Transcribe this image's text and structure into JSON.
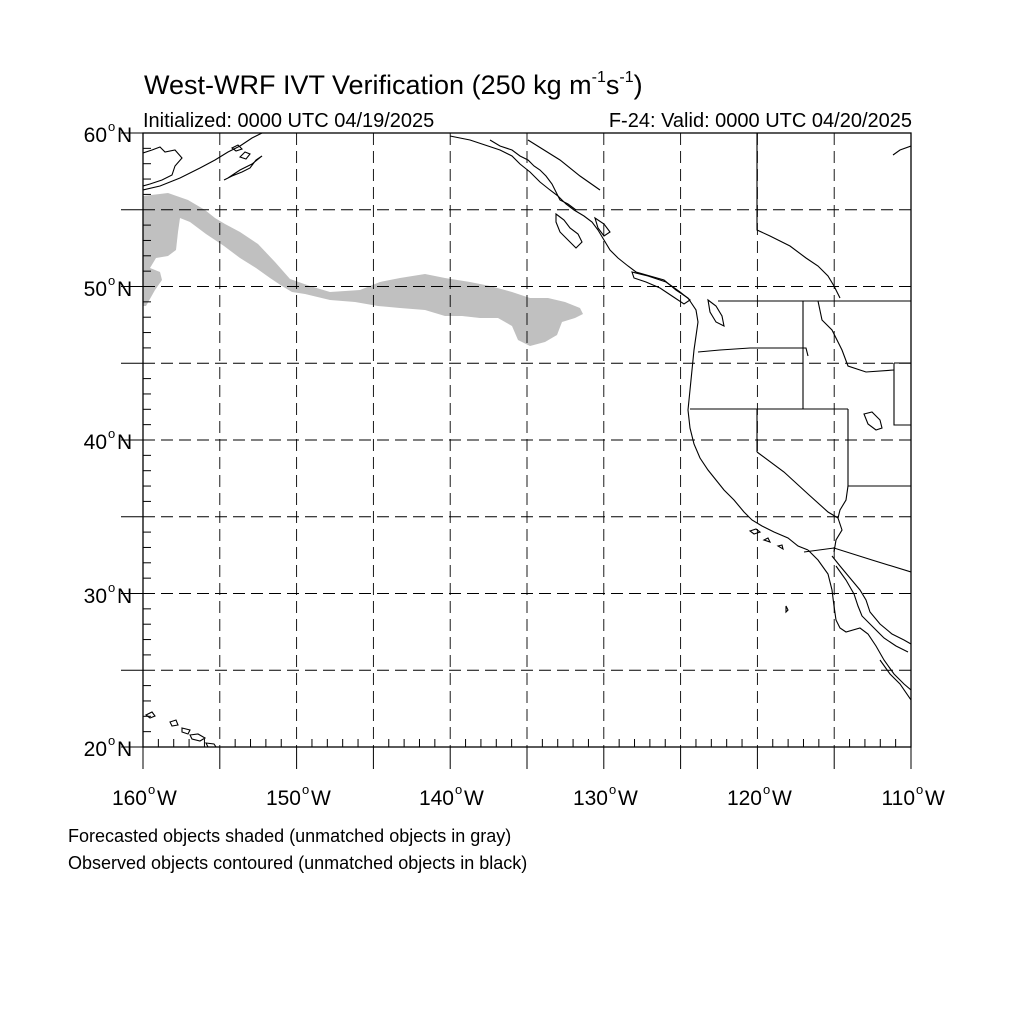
{
  "title": {
    "main": "West-WRF IVT Verification (250 kg m",
    "exp1": "-1",
    "mid": "s",
    "exp2": "-1",
    "end": ")"
  },
  "subtitle_left": "Initialized: 0000 UTC 04/19/2025",
  "subtitle_right": "F-24: Valid: 0000 UTC 04/20/2025",
  "lat_labels": [
    {
      "deg": "60",
      "suffix": "N",
      "value": 60
    },
    {
      "deg": "50",
      "suffix": "N",
      "value": 50
    },
    {
      "deg": "40",
      "suffix": "N",
      "value": 40
    },
    {
      "deg": "30",
      "suffix": "N",
      "value": 30
    },
    {
      "deg": "20",
      "suffix": "N",
      "value": 20
    }
  ],
  "lon_labels": [
    {
      "deg": "160",
      "suffix": "W",
      "value": -160
    },
    {
      "deg": "150",
      "suffix": "W",
      "value": -150
    },
    {
      "deg": "140",
      "suffix": "W",
      "value": -140
    },
    {
      "deg": "130",
      "suffix": "W",
      "value": -130
    },
    {
      "deg": "120",
      "suffix": "W",
      "value": -120
    },
    {
      "deg": "110",
      "suffix": "W",
      "value": -110
    }
  ],
  "captions": {
    "line1": "Forecasted objects shaded (unmatched objects in gray)",
    "line2": "Observed objects contoured (unmatched objects in black)"
  },
  "map": {
    "lon_range": [
      -160,
      -110
    ],
    "lat_range": [
      20,
      60
    ],
    "grid_interval_deg": 5,
    "grid_style": "dashed",
    "shading_color": "#c0c0c0"
  }
}
